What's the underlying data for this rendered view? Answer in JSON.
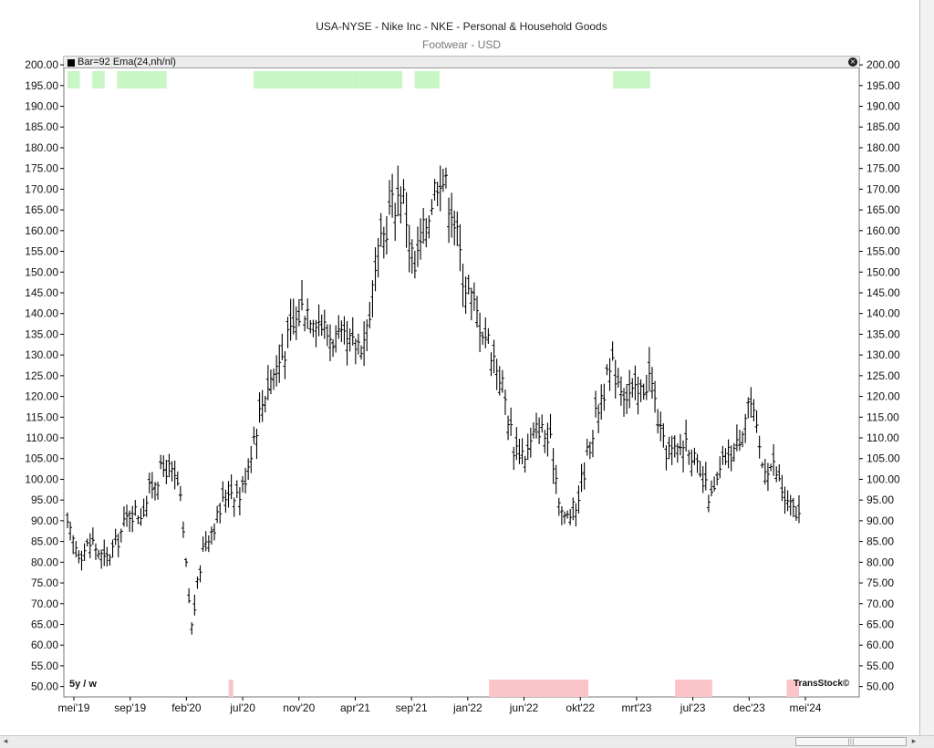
{
  "title": "USA-NYSE - Nike Inc - NKE - Personal & Household Goods",
  "subtitle": "Footwear - USD",
  "indicator_label": "Bar=92  Ema(24,nh/nl)",
  "period_label": "5y / w",
  "brand": "TransStock©",
  "colors": {
    "bars": "#000000",
    "bull_band": "#c8f7c5",
    "bear_band": "#fbc4c8",
    "grid": "#000000"
  },
  "scrollbar": {
    "left_arrow": "◂",
    "right_arrow": "▸",
    "thumb_grip": "|||"
  },
  "close_icon": "×",
  "chart_data": {
    "type": "ohlc",
    "title": "USA-NYSE - Nike Inc - NKE - Personal & Household Goods",
    "subtitle": "Footwear - USD",
    "ylim": [
      47.5,
      202
    ],
    "y_ticks": [
      200,
      195,
      190,
      185,
      180,
      175,
      170,
      165,
      160,
      155,
      150,
      145,
      140,
      135,
      130,
      125,
      120,
      115,
      110,
      105,
      100,
      95,
      90,
      85,
      80,
      75,
      70,
      65,
      60,
      55,
      50
    ],
    "x_tick_labels": [
      "mei'19",
      "sep'19",
      "feb'20",
      "jul'20",
      "nov'20",
      "apr'21",
      "sep'21",
      "jan'22",
      "jun'22",
      "okt'22",
      "mrt'23",
      "jul'23",
      "dec'23",
      "mei'24"
    ],
    "bars": 260,
    "price_path": [
      [
        "2019-05",
        88
      ],
      [
        "2019-06",
        82
      ],
      [
        "2019-07",
        85
      ],
      [
        "2019-08",
        80
      ],
      [
        "2019-09",
        85
      ],
      [
        "2019-10",
        92
      ],
      [
        "2019-11",
        92
      ],
      [
        "2019-12",
        100
      ],
      [
        "2020-01",
        103
      ],
      [
        "2020-02",
        98
      ],
      [
        "2020-03",
        64
      ],
      [
        "2020-04",
        85
      ],
      [
        "2020-05",
        90
      ],
      [
        "2020-06",
        98
      ],
      [
        "2020-07",
        96
      ],
      [
        "2020-08",
        110
      ],
      [
        "2020-09",
        122
      ],
      [
        "2020-10",
        128
      ],
      [
        "2020-11",
        135
      ],
      [
        "2020-12",
        142
      ],
      [
        "2021-01",
        140
      ],
      [
        "2021-02",
        135
      ],
      [
        "2021-03",
        133
      ],
      [
        "2021-04",
        132
      ],
      [
        "2021-05",
        134
      ],
      [
        "2021-06",
        152
      ],
      [
        "2021-07",
        165
      ],
      [
        "2021-08",
        170
      ],
      [
        "2021-09",
        150
      ],
      [
        "2021-10",
        163
      ],
      [
        "2021-11",
        175
      ],
      [
        "2021-12",
        166
      ],
      [
        "2022-01",
        148
      ],
      [
        "2022-02",
        140
      ],
      [
        "2022-03",
        133
      ],
      [
        "2022-04",
        124
      ],
      [
        "2022-05",
        108
      ],
      [
        "2022-06",
        106
      ],
      [
        "2022-07",
        113
      ],
      [
        "2022-08",
        108
      ],
      [
        "2022-09",
        90
      ],
      [
        "2022-10",
        93
      ],
      [
        "2022-11",
        107
      ],
      [
        "2022-12",
        120
      ],
      [
        "2023-01",
        127
      ],
      [
        "2023-02",
        121
      ],
      [
        "2023-03",
        120
      ],
      [
        "2023-04",
        125
      ],
      [
        "2023-05",
        108
      ],
      [
        "2023-06",
        106
      ],
      [
        "2023-07",
        110
      ],
      [
        "2023-08",
        100
      ],
      [
        "2023-09",
        95
      ],
      [
        "2023-10",
        105
      ],
      [
        "2023-11",
        108
      ],
      [
        "2023-12",
        120
      ],
      [
        "2024-01",
        104
      ],
      [
        "2024-02",
        103
      ],
      [
        "2024-03",
        94
      ],
      [
        "2024-04",
        91
      ]
    ],
    "bull_bands": [
      [
        "2019-05",
        "2019-06"
      ],
      [
        "2019-07",
        "2019-08"
      ],
      [
        "2019-09",
        "2020-01"
      ],
      [
        "2020-08",
        "2021-03"
      ],
      [
        "2021-03",
        "2021-04"
      ],
      [
        "2021-04",
        "2021-05"
      ],
      [
        "2021-05",
        "2021-08"
      ],
      [
        "2021-09",
        "2021-11"
      ],
      [
        "2023-01",
        "2023-04"
      ]
    ],
    "bear_bands": [
      [
        "2020-06",
        "2020-06"
      ],
      [
        "2022-03",
        "2022-11"
      ],
      [
        "2023-06",
        "2023-09"
      ],
      [
        "2024-03",
        "2024-04"
      ]
    ]
  }
}
